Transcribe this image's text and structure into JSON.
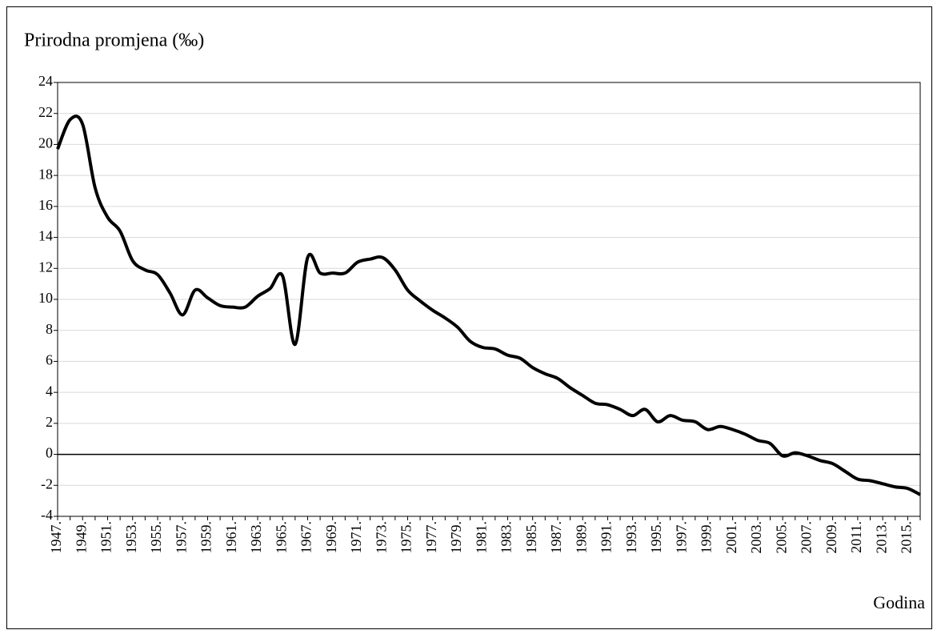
{
  "chart_data": {
    "type": "line",
    "y_label": "Prirodna promjena (‰)",
    "x_label": "Godina",
    "categories": [
      "1947.",
      null,
      "1949.",
      null,
      "1951.",
      null,
      "1953.",
      null,
      "1955.",
      null,
      "1957.",
      null,
      "1959.",
      null,
      "1961.",
      null,
      "1963.",
      null,
      "1965.",
      null,
      "1967.",
      null,
      "1969.",
      null,
      "1971.",
      null,
      "1973.",
      null,
      "1975.",
      null,
      "1977.",
      null,
      "1979.",
      null,
      "1981.",
      null,
      "1983.",
      null,
      "1985.",
      null,
      "1987.",
      null,
      "1989.",
      null,
      "1991.",
      null,
      "1993.",
      null,
      "1995.",
      null,
      "1997.",
      null,
      "1999.",
      null,
      "2001.",
      null,
      "2003.",
      null,
      "2005.",
      null,
      "2007.",
      null,
      "2009.",
      null,
      "2011.",
      null,
      "2013.",
      null,
      "2015.",
      null
    ],
    "values": [
      19.7,
      21.6,
      21.3,
      17.2,
      15.3,
      14.4,
      12.5,
      11.9,
      11.6,
      10.4,
      9.0,
      10.6,
      10.1,
      9.6,
      9.5,
      9.5,
      10.2,
      10.7,
      11.5,
      7.1,
      12.7,
      11.7,
      11.7,
      11.7,
      12.4,
      12.6,
      12.7,
      11.9,
      10.6,
      9.9,
      9.3,
      8.8,
      8.2,
      7.3,
      6.9,
      6.8,
      6.4,
      6.2,
      5.6,
      5.2,
      4.9,
      4.3,
      3.8,
      3.3,
      3.2,
      2.9,
      2.5,
      2.9,
      2.1,
      2.5,
      2.2,
      2.1,
      1.6,
      1.8,
      1.6,
      1.3,
      0.9,
      0.7,
      -0.1,
      0.1,
      -0.1,
      -0.4,
      -0.6,
      -1.1,
      -1.6,
      -1.7,
      -1.9,
      -2.1,
      -2.2,
      -2.6
    ],
    "color": "#000000",
    "ylim": [
      -4,
      24
    ],
    "yticks": [
      -4,
      -2,
      0,
      2,
      4,
      6,
      8,
      10,
      12,
      14,
      16,
      18,
      20,
      22,
      24
    ],
    "grid": true
  }
}
